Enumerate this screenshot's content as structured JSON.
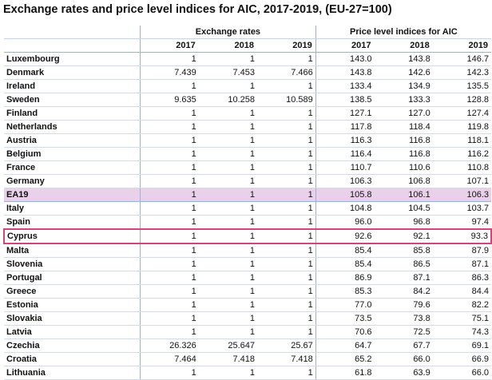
{
  "title": "Exchange rates and price level indices for AIC, 2017-2019, (EU-27=100)",
  "table": {
    "group_headers": [
      "Exchange rates",
      "Price level indices for AIC"
    ],
    "year_headers": [
      "2017",
      "2018",
      "2019",
      "2017",
      "2018",
      "2019"
    ],
    "rows": [
      {
        "country": "Luxembourg",
        "er": [
          "1",
          "1",
          "1"
        ],
        "pli": [
          "143.0",
          "143.8",
          "146.7"
        ]
      },
      {
        "country": "Denmark",
        "er": [
          "7.439",
          "7.453",
          "7.466"
        ],
        "pli": [
          "143.8",
          "142.6",
          "142.3"
        ]
      },
      {
        "country": "Ireland",
        "er": [
          "1",
          "1",
          "1"
        ],
        "pli": [
          "133.4",
          "134.9",
          "135.5"
        ]
      },
      {
        "country": "Sweden",
        "er": [
          "9.635",
          "10.258",
          "10.589"
        ],
        "pli": [
          "138.5",
          "133.3",
          "128.8"
        ]
      },
      {
        "country": "Finland",
        "er": [
          "1",
          "1",
          "1"
        ],
        "pli": [
          "127.1",
          "127.0",
          "127.4"
        ]
      },
      {
        "country": "Netherlands",
        "er": [
          "1",
          "1",
          "1"
        ],
        "pli": [
          "117.8",
          "118.4",
          "119.8"
        ]
      },
      {
        "country": "Austria",
        "er": [
          "1",
          "1",
          "1"
        ],
        "pli": [
          "116.3",
          "116.8",
          "118.1"
        ]
      },
      {
        "country": "Belgium",
        "er": [
          "1",
          "1",
          "1"
        ],
        "pli": [
          "116.4",
          "116.8",
          "116.2"
        ]
      },
      {
        "country": "France",
        "er": [
          "1",
          "1",
          "1"
        ],
        "pli": [
          "110.7",
          "110.6",
          "110.8"
        ]
      },
      {
        "country": "Germany",
        "er": [
          "1",
          "1",
          "1"
        ],
        "pli": [
          "106.3",
          "106.8",
          "107.1"
        ]
      },
      {
        "country": "EA19",
        "er": [
          "1",
          "1",
          "1"
        ],
        "pli": [
          "105.8",
          "106.1",
          "106.3"
        ],
        "style": "ea"
      },
      {
        "country": "Italy",
        "er": [
          "1",
          "1",
          "1"
        ],
        "pli": [
          "104.8",
          "104.5",
          "103.7"
        ]
      },
      {
        "country": "Spain",
        "er": [
          "1",
          "1",
          "1"
        ],
        "pli": [
          "96.0",
          "96.8",
          "97.4"
        ]
      },
      {
        "country": "Cyprus",
        "er": [
          "1",
          "1",
          "1"
        ],
        "pli": [
          "92.6",
          "92.1",
          "93.3"
        ],
        "style": "cy"
      },
      {
        "country": "Malta",
        "er": [
          "1",
          "1",
          "1"
        ],
        "pli": [
          "85.4",
          "85.8",
          "87.9"
        ]
      },
      {
        "country": "Slovenia",
        "er": [
          "1",
          "1",
          "1"
        ],
        "pli": [
          "85.4",
          "86.5",
          "87.1"
        ]
      },
      {
        "country": "Portugal",
        "er": [
          "1",
          "1",
          "1"
        ],
        "pli": [
          "86.9",
          "87.1",
          "86.3"
        ]
      },
      {
        "country": "Greece",
        "er": [
          "1",
          "1",
          "1"
        ],
        "pli": [
          "85.3",
          "84.2",
          "84.4"
        ]
      },
      {
        "country": "Estonia",
        "er": [
          "1",
          "1",
          "1"
        ],
        "pli": [
          "77.0",
          "79.6",
          "82.2"
        ]
      },
      {
        "country": "Slovakia",
        "er": [
          "1",
          "1",
          "1"
        ],
        "pli": [
          "73.5",
          "73.8",
          "75.1"
        ]
      },
      {
        "country": "Latvia",
        "er": [
          "1",
          "1",
          "1"
        ],
        "pli": [
          "70.6",
          "72.5",
          "74.3"
        ]
      },
      {
        "country": "Czechia",
        "er": [
          "26.326",
          "25.647",
          "25.67"
        ],
        "pli": [
          "64.7",
          "67.7",
          "69.1"
        ]
      },
      {
        "country": "Croatia",
        "er": [
          "7.464",
          "7.418",
          "7.418"
        ],
        "pli": [
          "65.2",
          "66.0",
          "66.9"
        ]
      },
      {
        "country": "Lithuania",
        "er": [
          "1",
          "1",
          "1"
        ],
        "pli": [
          "61.8",
          "63.9",
          "66.0"
        ]
      }
    ]
  },
  "colors": {
    "highlight_row": "#ead1ea",
    "selected_outline": "#d1457f",
    "grid": "#9fb1cf"
  }
}
